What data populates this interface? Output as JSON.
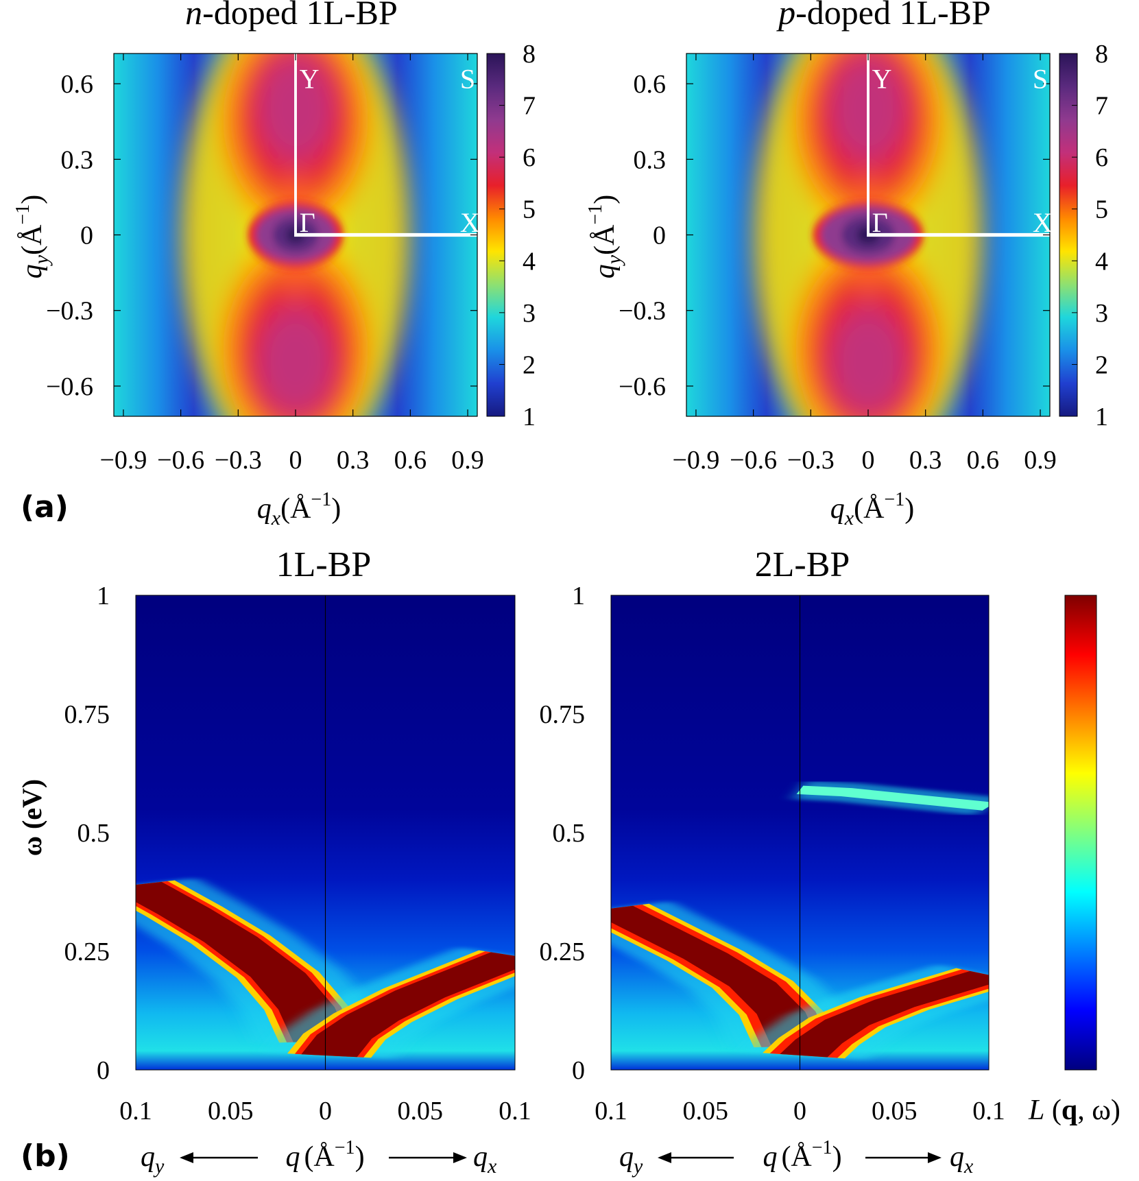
{
  "chart_data": [
    {
      "type": "heatmap",
      "panel": "(a)",
      "title": "n-doped 1L-BP",
      "title_italic_part": "n",
      "title_rest": "-doped 1L-BP",
      "xlabel": "q_x (Å⁻¹)",
      "ylabel": "q_y (Å⁻¹)",
      "xlim": [
        -0.95,
        0.95
      ],
      "ylim": [
        -0.72,
        0.72
      ],
      "xticks": [
        -0.9,
        -0.6,
        -0.3,
        0,
        0.3,
        0.6,
        0.9
      ],
      "xtick_labels": [
        "−0.9",
        "−0.6",
        "−0.3",
        "0",
        "0.3",
        "0.6",
        "0.9"
      ],
      "yticks": [
        -0.6,
        -0.3,
        0,
        0.3,
        0.6
      ],
      "ytick_labels": [
        "−0.6",
        "−0.3",
        "0",
        "0.3",
        "0.6"
      ],
      "colorbar": {
        "min": 1,
        "max": 8,
        "ticks": [
          1,
          2,
          3,
          4,
          5,
          6,
          7,
          8
        ],
        "tick_labels": [
          "1",
          "2",
          "3",
          "4",
          "5",
          "6",
          "7",
          "8"
        ]
      },
      "path": {
        "points": [
          "Y",
          "Γ",
          "X"
        ],
        "coords": [
          [
            0,
            0.72
          ],
          [
            0,
            0
          ],
          [
            0.95,
            0
          ]
        ]
      },
      "annotations": [
        {
          "label": "Y",
          "qx": 0.02,
          "qy": 0.62
        },
        {
          "label": "S",
          "qx": 0.86,
          "qy": 0.62
        },
        {
          "label": "Γ",
          "qx": 0.02,
          "qy": 0.05
        },
        {
          "label": "X",
          "qx": 0.86,
          "qy": 0.05
        }
      ],
      "center_gap_radius": 0.26
    },
    {
      "type": "heatmap",
      "panel": "(a)",
      "title": "p-doped 1L-BP",
      "title_italic_part": "p",
      "title_rest": "-doped 1L-BP",
      "xlabel": "q_x (Å⁻¹)",
      "ylabel": "q_y (Å⁻¹)",
      "xlim": [
        -0.95,
        0.95
      ],
      "ylim": [
        -0.72,
        0.72
      ],
      "xticks": [
        -0.9,
        -0.6,
        -0.3,
        0,
        0.3,
        0.6,
        0.9
      ],
      "xtick_labels": [
        "−0.9",
        "−0.6",
        "−0.3",
        "0",
        "0.3",
        "0.6",
        "0.9"
      ],
      "yticks": [
        -0.6,
        -0.3,
        0,
        0.3,
        0.6
      ],
      "ytick_labels": [
        "−0.6",
        "−0.3",
        "0",
        "0.3",
        "0.6"
      ],
      "colorbar": {
        "min": 1,
        "max": 8,
        "ticks": [
          1,
          2,
          3,
          4,
          5,
          6,
          7,
          8
        ],
        "tick_labels": [
          "1",
          "2",
          "3",
          "4",
          "5",
          "6",
          "7",
          "8"
        ]
      },
      "path": {
        "points": [
          "Y",
          "Γ",
          "X"
        ],
        "coords": [
          [
            0,
            0.72
          ],
          [
            0,
            0
          ],
          [
            0.95,
            0
          ]
        ]
      },
      "annotations": [
        {
          "label": "Y",
          "qx": 0.02,
          "qy": 0.62
        },
        {
          "label": "S",
          "qx": 0.86,
          "qy": 0.62
        },
        {
          "label": "Γ",
          "qx": 0.02,
          "qy": 0.05
        },
        {
          "label": "X",
          "qx": 0.86,
          "qy": 0.05
        }
      ],
      "center_gap_radius": 0.3
    },
    {
      "type": "heatmap",
      "panel": "(b)",
      "title": "1L-BP",
      "xlabel": "q (Å⁻¹)",
      "xlabel_left": "q_y",
      "xlabel_right": "q_x",
      "ylabel": "ω (eV)",
      "xlim": [
        -0.1,
        0.1
      ],
      "ylim": [
        0,
        1
      ],
      "xticks": [
        -0.1,
        -0.05,
        0,
        0.05,
        0.1
      ],
      "xtick_labels": [
        "0.1",
        "0.05",
        "0",
        "0.05",
        "0.1"
      ],
      "yticks": [
        0,
        0.25,
        0.5,
        0.75,
        1
      ],
      "ytick_labels": [
        "0",
        "0.25",
        "0.5",
        "0.75",
        "1"
      ],
      "series": [
        {
          "name": "plasmon q_y branch",
          "q": [
            0.1,
            0.075,
            0.05,
            0.025,
            0.01,
            0.002
          ],
          "omega": [
            0.39,
            0.335,
            0.275,
            0.2,
            0.13,
            0.06
          ]
        },
        {
          "name": "plasmon q_x branch",
          "q": [
            0.002,
            0.01,
            0.025,
            0.05,
            0.075,
            0.1
          ],
          "omega": [
            0.03,
            0.07,
            0.11,
            0.16,
            0.2,
            0.24
          ]
        }
      ]
    },
    {
      "type": "heatmap",
      "panel": "(b)",
      "title": "2L-BP",
      "xlabel": "q (Å⁻¹)",
      "xlabel_left": "q_y",
      "xlabel_right": "q_x",
      "ylabel": "ω (eV)",
      "xlim": [
        -0.1,
        0.1
      ],
      "ylim": [
        0,
        1
      ],
      "xticks": [
        -0.1,
        -0.05,
        0,
        0.05,
        0.1
      ],
      "xtick_labels": [
        "0.1",
        "0.05",
        "0",
        "0.05",
        "0.1"
      ],
      "yticks": [
        0,
        0.25,
        0.5,
        0.75,
        1
      ],
      "ytick_labels": [
        "0",
        "0.25",
        "0.5",
        "0.75",
        "1"
      ],
      "colorbar_label": "L (q, ω)",
      "series": [
        {
          "name": "plasmon q_y branch",
          "q": [
            0.1,
            0.075,
            0.05,
            0.025,
            0.01,
            0.002
          ],
          "omega": [
            0.34,
            0.29,
            0.24,
            0.18,
            0.12,
            0.05
          ]
        },
        {
          "name": "plasmon q_x branch",
          "q": [
            0.002,
            0.01,
            0.025,
            0.05,
            0.075,
            0.1
          ],
          "omega": [
            0.03,
            0.06,
            0.1,
            0.14,
            0.17,
            0.2
          ]
        },
        {
          "name": "interband band",
          "q": [
            0.0,
            0.025,
            0.05,
            0.075,
            0.1
          ],
          "omega": [
            0.59,
            0.585,
            0.575,
            0.565,
            0.555
          ]
        }
      ]
    }
  ],
  "panel_labels": {
    "a": "(a)",
    "b": "(b)"
  },
  "axis_text": {
    "qx_label": "q",
    "qx_sub": "x",
    "qy_label": "q",
    "qy_sub": "y",
    "unit": "(Å",
    "unit_exp": "−1",
    "unit_close": ")",
    "omega_label": "ω (eV)",
    "L_label_italic": "L",
    "L_label_bold": "q",
    "L_label_rest": ", ω)",
    "L_label_open": " (",
    "arrow_left": "⟵",
    "arrow_right": "⟶"
  },
  "colors": {
    "jet": [
      "#00007f",
      "#0000ff",
      "#0080ff",
      "#00ffff",
      "#80ff80",
      "#ffff00",
      "#ff8000",
      "#ff0000",
      "#7f0000"
    ],
    "panel_a_map": [
      "#2a1458",
      "#5a2a7e",
      "#8f3a8f",
      "#c2307a",
      "#e8202a",
      "#ff8a00",
      "#ffe400",
      "#8fe070",
      "#1fd6dc",
      "#1a90e8",
      "#2040d0",
      "#161a80"
    ],
    "white_path": "#ffffff"
  }
}
